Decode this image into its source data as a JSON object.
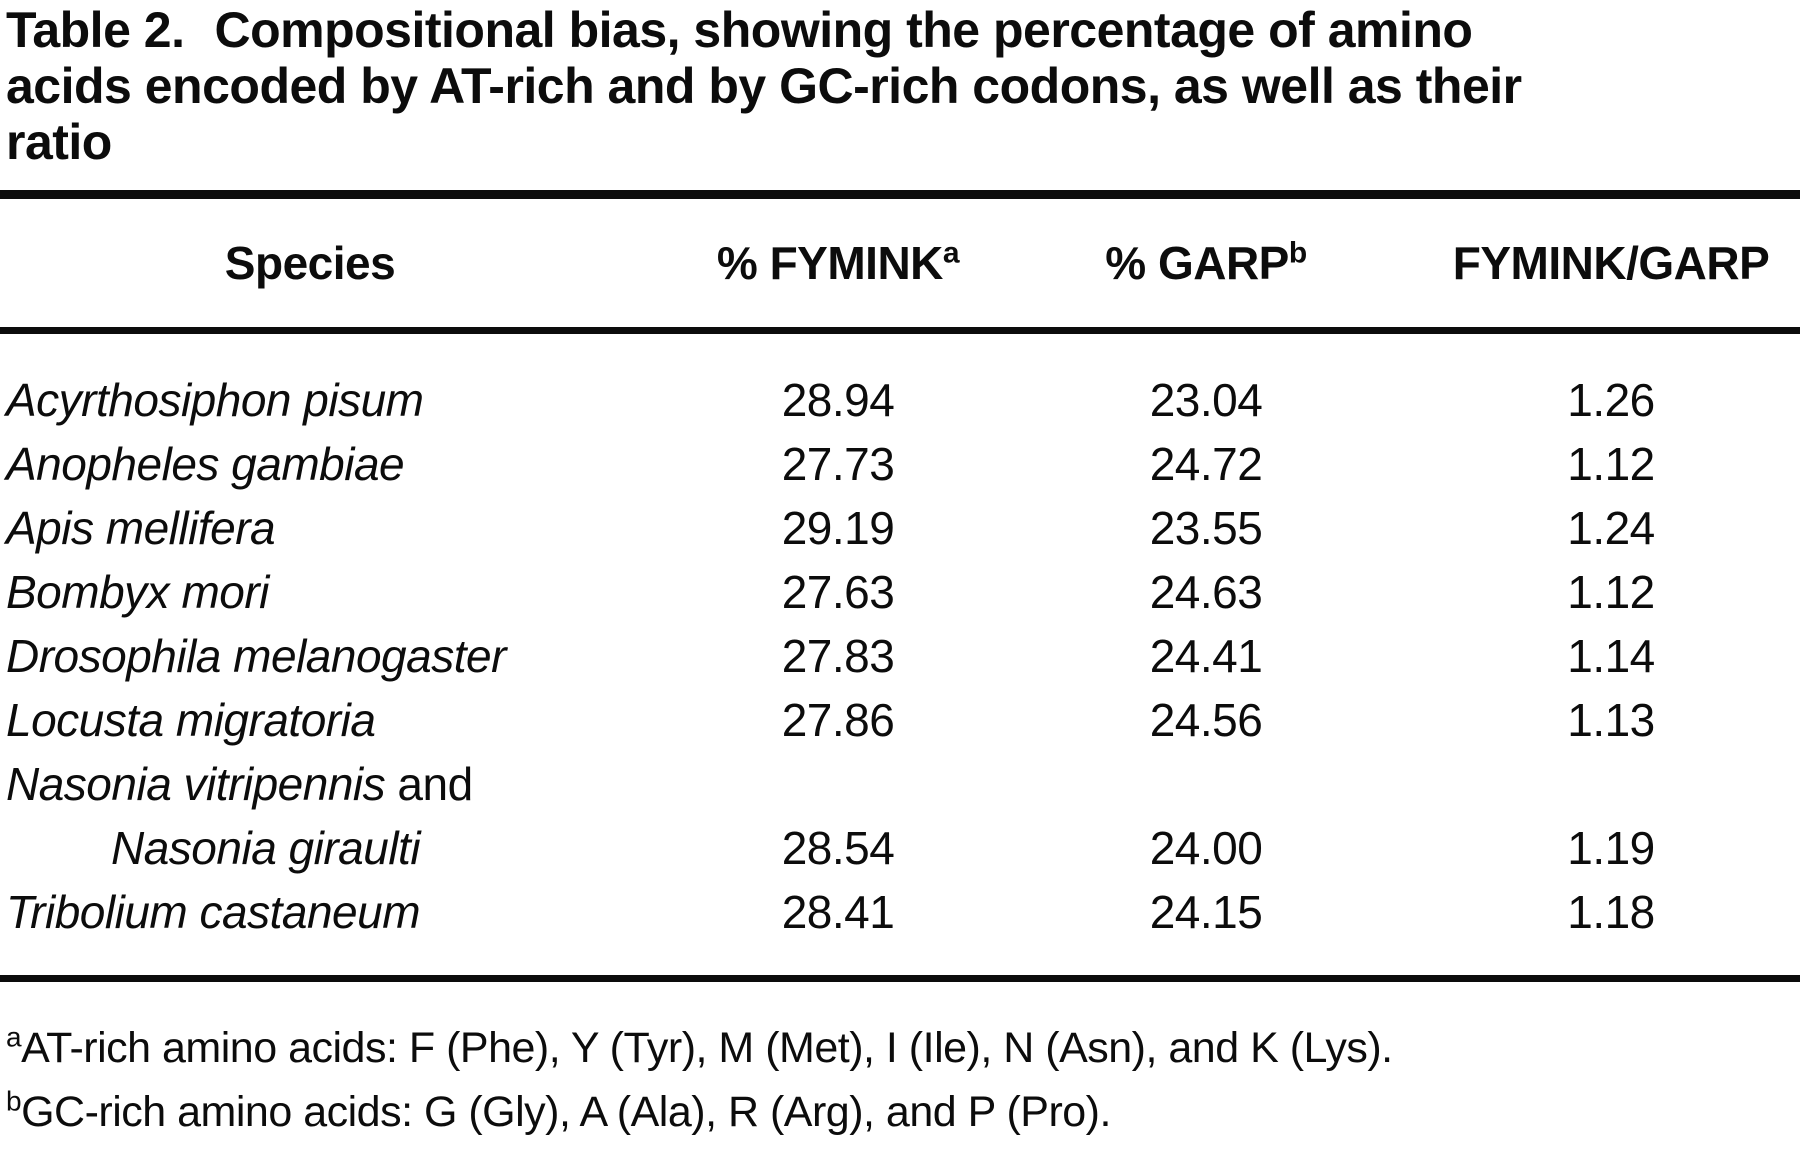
{
  "title": {
    "label": "Table 2.",
    "line1": "Compositional bias, showing the percentage of amino",
    "line2": "acids encoded by AT-rich and by GC-rich codons, as well as their",
    "line3": "ratio"
  },
  "table": {
    "headers": {
      "species": "Species",
      "fymink": "% FYMINK",
      "fymink_sup": "a",
      "garp": "% GARP",
      "garp_sup": "b",
      "ratio": "FYMINK/GARP"
    },
    "rows": [
      {
        "species": "Acyrthosiphon pisum",
        "fymink": "28.94",
        "garp": "23.04",
        "ratio": "1.26"
      },
      {
        "species": "Anopheles gambiae",
        "fymink": "27.73",
        "garp": "24.72",
        "ratio": "1.12"
      },
      {
        "species": "Apis mellifera",
        "fymink": "29.19",
        "garp": "23.55",
        "ratio": "1.24"
      },
      {
        "species": "Bombyx mori",
        "fymink": "27.63",
        "garp": "24.63",
        "ratio": "1.12"
      },
      {
        "species": "Drosophila melanogaster",
        "fymink": "27.83",
        "garp": "24.41",
        "ratio": "1.14"
      },
      {
        "species": "Locusta migratoria",
        "fymink": "27.86",
        "garp": "24.56",
        "ratio": "1.13"
      },
      {
        "species": "Nasonia vitripennis",
        "species_suffix": " and",
        "fymink": "",
        "garp": "",
        "ratio": ""
      },
      {
        "species": "Nasonia giraulti",
        "fymink": "28.54",
        "garp": "24.00",
        "ratio": "1.19"
      },
      {
        "species": "Tribolium castaneum",
        "fymink": "28.41",
        "garp": "24.15",
        "ratio": "1.18"
      }
    ]
  },
  "footnotes": [
    {
      "marker": "a",
      "text": "AT-rich amino acids: F (Phe), Y (Tyr), M (Met), I (Ile), N (Asn), and K (Lys)."
    },
    {
      "marker": "b",
      "text": "GC-rich amino acids: G (Gly), A (Ala), R (Arg), and P (Pro)."
    }
  ],
  "colors": {
    "background": "#ffffff",
    "text": "#0c0c0c",
    "rule": "#0c0c0c"
  }
}
